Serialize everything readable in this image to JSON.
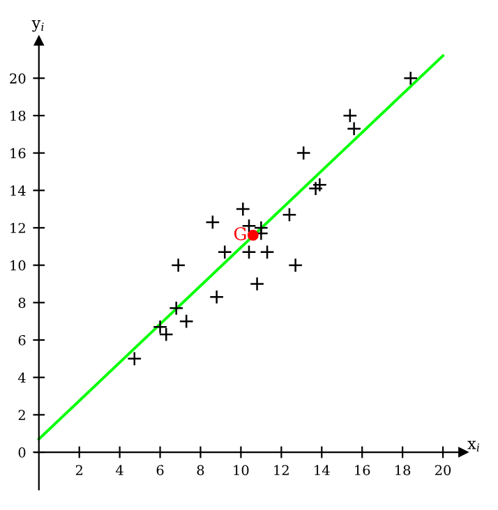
{
  "chart_data": {
    "type": "scatter",
    "xlabel": "x$_{i}$",
    "ylabel": "y$_{i}$",
    "xlim": [
      -0.2,
      21
    ],
    "ylim": [
      -2,
      22
    ],
    "xticks": [
      2,
      4,
      6,
      8,
      10,
      12,
      14,
      16,
      18,
      20
    ],
    "yticks": [
      0,
      2,
      4,
      6,
      8,
      10,
      12,
      14,
      16,
      18,
      20
    ],
    "grid": false,
    "legend": false,
    "annotations": [
      {
        "text": "G",
        "x": 10.6,
        "y": 11.6
      }
    ],
    "series": [
      {
        "color": "#000000",
        "marker": "cross",
        "x": [
          4.73,
          6.0,
          6.3,
          6.8,
          7.3,
          6.9,
          8.6,
          8.8,
          9.2,
          10.1,
          10.4,
          10.4,
          10.8,
          11.0,
          11.0,
          11.3,
          12.4,
          12.7,
          13.1,
          13.7,
          13.9,
          15.4,
          15.6,
          18.4
        ],
        "values": [
          5.0,
          6.7,
          6.3,
          7.7,
          7.0,
          10.0,
          12.3,
          8.3,
          10.7,
          13.0,
          12.1,
          10.7,
          9.0,
          12.0,
          11.7,
          10.7,
          12.7,
          10.0,
          16.0,
          14.1,
          14.3,
          18.0,
          17.3,
          20.0
        ]
      },
      {
        "type": "line",
        "color": "#00ff00",
        "marker": "none",
        "x": [
          0,
          20
        ],
        "values": [
          0.7,
          21.2
        ]
      },
      {
        "color": "#ff0000",
        "marker": "circle",
        "x": [
          10.6
        ],
        "values": [
          11.6
        ]
      }
    ]
  }
}
